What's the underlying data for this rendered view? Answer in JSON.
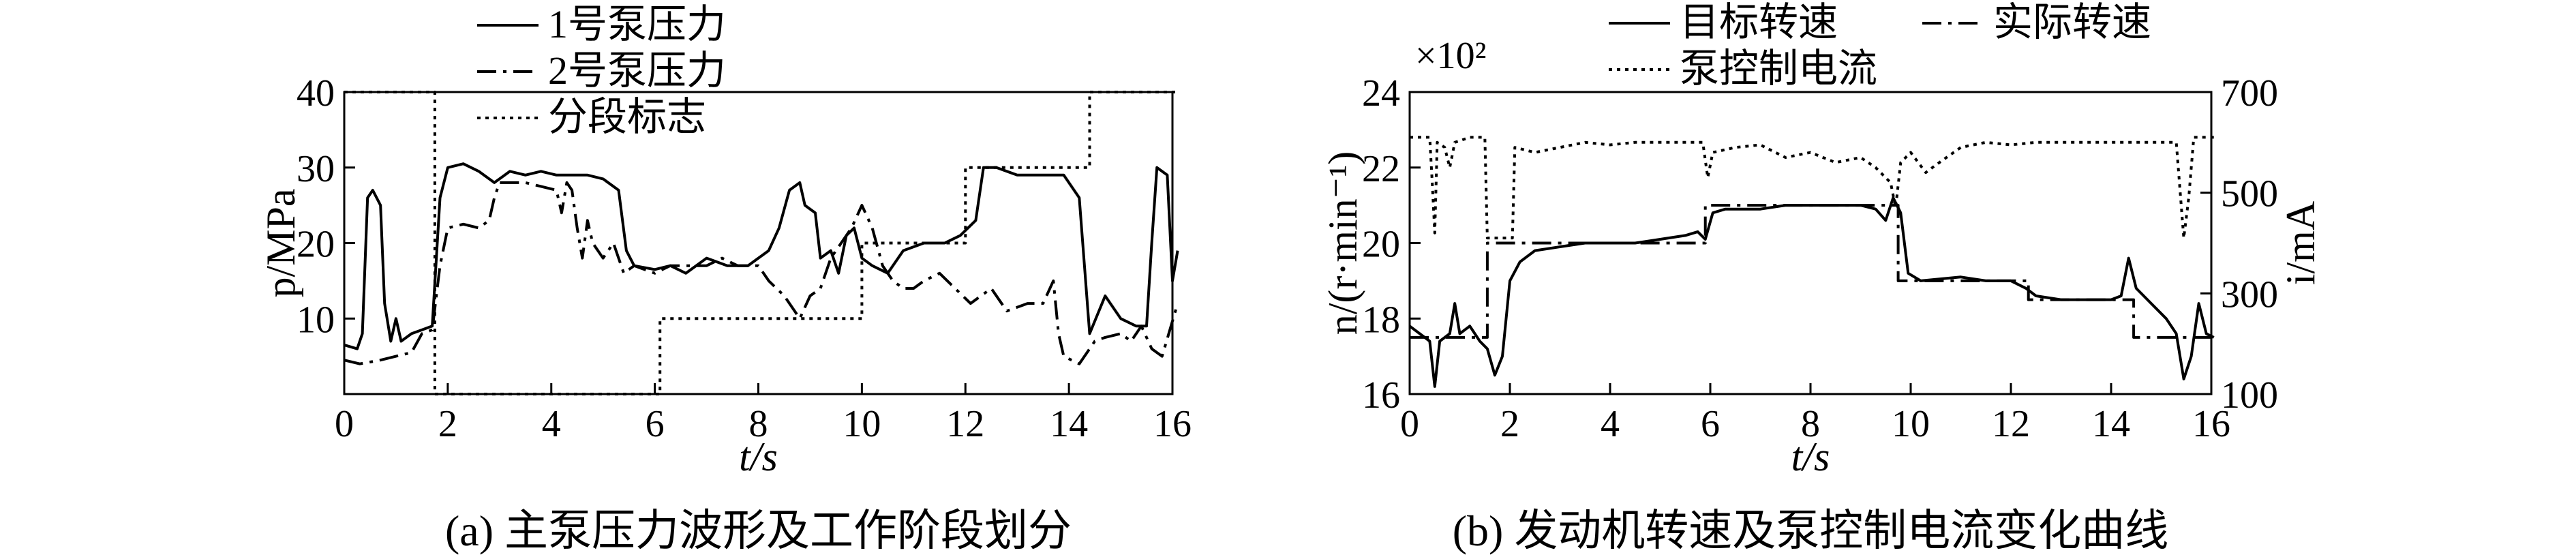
{
  "chart_data": [
    {
      "type": "line",
      "caption": "(a) 主泵压力波形及工作阶段划分",
      "xlabel": "t/s",
      "ylabel": "p/MPa",
      "xlim": [
        0,
        16
      ],
      "ylim": [
        0,
        40
      ],
      "xticks": [
        "0",
        "2",
        "4",
        "6",
        "8",
        "10",
        "12",
        "14",
        "16"
      ],
      "yticks": [
        "10",
        "20",
        "30",
        "40"
      ],
      "legend_position": "top-center",
      "series": [
        {
          "name": "1号泵压力",
          "style": "solid",
          "points": [
            [
              0,
              6.5
            ],
            [
              0.25,
              6
            ],
            [
              0.35,
              8
            ],
            [
              0.45,
              26
            ],
            [
              0.55,
              27
            ],
            [
              0.7,
              25
            ],
            [
              0.78,
              12
            ],
            [
              0.9,
              7
            ],
            [
              1.0,
              10
            ],
            [
              1.1,
              7
            ],
            [
              1.3,
              8
            ],
            [
              1.5,
              8.5
            ],
            [
              1.7,
              9
            ],
            [
              1.85,
              26
            ],
            [
              2.0,
              30
            ],
            [
              2.3,
              30.5
            ],
            [
              2.6,
              29.5
            ],
            [
              2.9,
              28
            ],
            [
              3.2,
              29.5
            ],
            [
              3.5,
              29
            ],
            [
              3.8,
              29.5
            ],
            [
              4.1,
              29
            ],
            [
              4.4,
              29
            ],
            [
              4.7,
              29
            ],
            [
              5.0,
              28.5
            ],
            [
              5.3,
              27
            ],
            [
              5.45,
              19
            ],
            [
              5.6,
              17
            ],
            [
              6.0,
              16.5
            ],
            [
              6.3,
              17
            ],
            [
              6.6,
              16
            ],
            [
              7.0,
              18
            ],
            [
              7.4,
              17
            ],
            [
              7.8,
              17
            ],
            [
              8.2,
              19
            ],
            [
              8.4,
              22
            ],
            [
              8.6,
              27
            ],
            [
              8.8,
              28
            ],
            [
              8.9,
              25
            ],
            [
              9.1,
              24
            ],
            [
              9.2,
              18
            ],
            [
              9.4,
              19
            ],
            [
              9.55,
              16
            ],
            [
              9.7,
              21
            ],
            [
              9.85,
              22
            ],
            [
              10.0,
              18
            ],
            [
              10.2,
              17
            ],
            [
              10.5,
              16
            ],
            [
              10.8,
              19
            ],
            [
              11.2,
              20
            ],
            [
              11.6,
              20
            ],
            [
              11.9,
              21
            ],
            [
              12.2,
              23
            ],
            [
              12.35,
              30
            ],
            [
              12.6,
              30
            ],
            [
              13.0,
              29
            ],
            [
              13.5,
              29
            ],
            [
              13.9,
              29
            ],
            [
              14.2,
              26
            ],
            [
              14.4,
              8
            ],
            [
              14.7,
              13
            ],
            [
              15.0,
              10
            ],
            [
              15.3,
              9
            ],
            [
              15.5,
              9
            ],
            [
              15.6,
              20
            ],
            [
              15.7,
              30
            ],
            [
              15.9,
              29
            ],
            [
              16.0,
              15
            ],
            [
              16.1,
              19
            ]
          ]
        },
        {
          "name": "2号泵压力",
          "style": "dashdot",
          "points": [
            [
              0,
              4.5
            ],
            [
              0.3,
              4
            ],
            [
              0.7,
              4.5
            ],
            [
              1.0,
              5
            ],
            [
              1.3,
              5.5
            ],
            [
              1.5,
              8
            ],
            [
              1.7,
              8.5
            ],
            [
              1.85,
              17
            ],
            [
              2.0,
              22
            ],
            [
              2.3,
              22.5
            ],
            [
              2.6,
              22
            ],
            [
              2.8,
              23
            ],
            [
              2.9,
              26
            ],
            [
              3.0,
              28
            ],
            [
              3.3,
              28
            ],
            [
              3.5,
              28
            ],
            [
              3.8,
              27.5
            ],
            [
              4.1,
              27
            ],
            [
              4.2,
              24
            ],
            [
              4.3,
              28
            ],
            [
              4.4,
              27
            ],
            [
              4.5,
              22
            ],
            [
              4.6,
              18
            ],
            [
              4.7,
              23
            ],
            [
              4.8,
              20
            ],
            [
              5.0,
              18
            ],
            [
              5.2,
              20
            ],
            [
              5.4,
              16
            ],
            [
              5.6,
              17
            ],
            [
              6.0,
              16
            ],
            [
              6.3,
              17
            ],
            [
              6.6,
              17
            ],
            [
              7.0,
              17
            ],
            [
              7.3,
              18
            ],
            [
              7.6,
              17
            ],
            [
              8.0,
              17
            ],
            [
              8.2,
              15
            ],
            [
              8.5,
              13
            ],
            [
              8.8,
              10
            ],
            [
              9.0,
              13
            ],
            [
              9.2,
              14
            ],
            [
              9.4,
              18
            ],
            [
              9.6,
              20
            ],
            [
              9.8,
              22
            ],
            [
              10.0,
              25
            ],
            [
              10.2,
              22
            ],
            [
              10.4,
              17
            ],
            [
              10.6,
              15
            ],
            [
              10.8,
              14
            ],
            [
              11.0,
              14
            ],
            [
              11.2,
              15
            ],
            [
              11.5,
              16
            ],
            [
              11.8,
              14
            ],
            [
              12.1,
              12
            ],
            [
              12.5,
              14
            ],
            [
              12.8,
              11
            ],
            [
              13.2,
              12
            ],
            [
              13.5,
              12
            ],
            [
              13.7,
              15
            ],
            [
              13.8,
              8
            ],
            [
              13.9,
              5
            ],
            [
              14.2,
              4
            ],
            [
              14.5,
              7
            ],
            [
              14.7,
              7.5
            ],
            [
              15.0,
              8
            ],
            [
              15.2,
              7
            ],
            [
              15.4,
              9
            ],
            [
              15.6,
              6
            ],
            [
              15.8,
              5
            ],
            [
              16.1,
              12
            ]
          ]
        },
        {
          "name": "分段标志",
          "style": "dotted",
          "points": [
            [
              0,
              40
            ],
            [
              1.75,
              40
            ],
            [
              1.75,
              0
            ],
            [
              6.1,
              0
            ],
            [
              6.1,
              10
            ],
            [
              10.0,
              10
            ],
            [
              10.0,
              20
            ],
            [
              12.0,
              20
            ],
            [
              12.0,
              30
            ],
            [
              14.4,
              30
            ],
            [
              14.4,
              40
            ],
            [
              16.1,
              40
            ]
          ]
        }
      ]
    },
    {
      "type": "line",
      "caption": "(b) 发动机转速及泵控制电流变化曲线",
      "xlabel": "t/s",
      "ylabel_left": "n/(r·min⁻¹)",
      "ylabel_right": "i/mA",
      "y_multiplier": "×10²",
      "xlim": [
        0,
        16
      ],
      "ylim_left": [
        16,
        24
      ],
      "ylim_right": [
        100,
        700
      ],
      "xticks": [
        "0",
        "2",
        "4",
        "6",
        "8",
        "10",
        "12",
        "14",
        "16"
      ],
      "yticks_left": [
        "16",
        "18",
        "20",
        "22",
        "24"
      ],
      "yticks_right": [
        "100",
        "300",
        "500",
        "700"
      ],
      "legend_position": "top-center",
      "series": [
        {
          "name": "目标转速",
          "style": "solid",
          "axis": "left",
          "points": [
            [
              0,
              17.8
            ],
            [
              0.2,
              17.6
            ],
            [
              0.4,
              17.4
            ],
            [
              0.5,
              16.2
            ],
            [
              0.6,
              17.4
            ],
            [
              0.8,
              17.6
            ],
            [
              0.9,
              18.4
            ],
            [
              1.0,
              17.6
            ],
            [
              1.2,
              17.8
            ],
            [
              1.4,
              17.4
            ],
            [
              1.55,
              17.2
            ],
            [
              1.7,
              16.5
            ],
            [
              1.85,
              17
            ],
            [
              2.0,
              19.0
            ],
            [
              2.2,
              19.5
            ],
            [
              2.5,
              19.8
            ],
            [
              3.0,
              19.9
            ],
            [
              3.5,
              20.0
            ],
            [
              4.0,
              20.0
            ],
            [
              4.5,
              20.0
            ],
            [
              5.0,
              20.1
            ],
            [
              5.5,
              20.2
            ],
            [
              5.75,
              20.3
            ],
            [
              5.9,
              20.1
            ],
            [
              6.05,
              20.8
            ],
            [
              6.3,
              20.9
            ],
            [
              7.0,
              20.9
            ],
            [
              7.5,
              21.0
            ],
            [
              8.0,
              21.0
            ],
            [
              8.5,
              21.0
            ],
            [
              9.0,
              21.0
            ],
            [
              9.3,
              20.9
            ],
            [
              9.5,
              20.6
            ],
            [
              9.65,
              21.2
            ],
            [
              9.8,
              20.8
            ],
            [
              9.95,
              19.2
            ],
            [
              10.2,
              19.0
            ],
            [
              11.0,
              19.1
            ],
            [
              11.5,
              19.0
            ],
            [
              12.0,
              19.0
            ],
            [
              12.3,
              18.8
            ],
            [
              12.5,
              18.6
            ],
            [
              13.0,
              18.5
            ],
            [
              13.5,
              18.5
            ],
            [
              14.0,
              18.5
            ],
            [
              14.2,
              18.6
            ],
            [
              14.35,
              19.6
            ],
            [
              14.5,
              18.8
            ],
            [
              14.8,
              18.4
            ],
            [
              15.1,
              18.0
            ],
            [
              15.3,
              17.6
            ],
            [
              15.45,
              16.4
            ],
            [
              15.6,
              17.0
            ],
            [
              15.75,
              18.4
            ],
            [
              15.9,
              17.6
            ],
            [
              16.05,
              17.5
            ]
          ]
        },
        {
          "name": "实际转速",
          "style": "dashdot",
          "axis": "left",
          "points": [
            [
              0,
              17.5
            ],
            [
              1.55,
              17.5
            ],
            [
              1.55,
              20.0
            ],
            [
              5.9,
              20.0
            ],
            [
              5.9,
              21.0
            ],
            [
              9.75,
              21.0
            ],
            [
              9.75,
              19.0
            ],
            [
              12.35,
              19.0
            ],
            [
              12.35,
              18.5
            ],
            [
              14.45,
              18.5
            ],
            [
              14.45,
              17.5
            ],
            [
              16.05,
              17.5
            ]
          ]
        },
        {
          "name": "泵控制电流",
          "style": "dotted",
          "axis": "right",
          "points": [
            [
              0,
              610
            ],
            [
              0.4,
              610
            ],
            [
              0.45,
              520
            ],
            [
              0.5,
              420
            ],
            [
              0.55,
              600
            ],
            [
              0.7,
              590
            ],
            [
              0.8,
              550
            ],
            [
              0.9,
              600
            ],
            [
              1.2,
              610
            ],
            [
              1.5,
              610
            ],
            [
              1.55,
              410
            ],
            [
              2.05,
              410
            ],
            [
              2.1,
              590
            ],
            [
              2.5,
              580
            ],
            [
              3.0,
              590
            ],
            [
              3.5,
              600
            ],
            [
              4.0,
              595
            ],
            [
              4.5,
              600
            ],
            [
              5.0,
              600
            ],
            [
              5.5,
              600
            ],
            [
              5.85,
              600
            ],
            [
              5.95,
              530
            ],
            [
              6.05,
              580
            ],
            [
              6.5,
              590
            ],
            [
              7.0,
              595
            ],
            [
              7.5,
              570
            ],
            [
              8.0,
              580
            ],
            [
              8.5,
              560
            ],
            [
              9.0,
              570
            ],
            [
              9.3,
              550
            ],
            [
              9.6,
              520
            ],
            [
              9.7,
              470
            ],
            [
              9.8,
              560
            ],
            [
              10.0,
              580
            ],
            [
              10.3,
              540
            ],
            [
              10.5,
              555
            ],
            [
              11.0,
              590
            ],
            [
              11.5,
              600
            ],
            [
              12.0,
              595
            ],
            [
              12.5,
              600
            ],
            [
              13.0,
              600
            ],
            [
              13.5,
              600
            ],
            [
              14.0,
              600
            ],
            [
              14.5,
              600
            ],
            [
              15.0,
              600
            ],
            [
              15.3,
              600
            ],
            [
              15.45,
              410
            ],
            [
              15.55,
              490
            ],
            [
              15.65,
              610
            ],
            [
              16.05,
              610
            ]
          ]
        }
      ]
    }
  ]
}
